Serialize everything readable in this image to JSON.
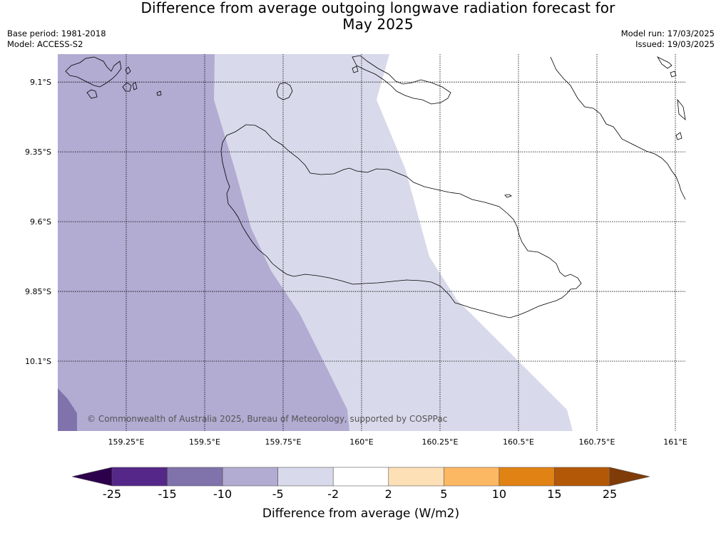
{
  "header": {
    "title_line1": "Difference from average outgoing longwave radiation forecast for",
    "title_line2": "May 2025",
    "base_period": "Base period: 1981-2018",
    "model": "Model: ACCESS-S2",
    "model_run": "Model run: 17/03/2025",
    "issued": "Issued: 19/03/2025"
  },
  "map": {
    "lon_range": [
      159.0,
      161.0
    ],
    "lat_range": [
      -9.0,
      -10.35
    ],
    "lon_ticks": [
      159.25,
      159.5,
      159.75,
      160.0,
      160.25,
      160.5,
      160.75,
      161.0
    ],
    "lon_tick_labels": [
      "159.25°E",
      "159.5°E",
      "159.75°E",
      "160°E",
      "160.25°E",
      "160.5°E",
      "160.75°E",
      "161°E"
    ],
    "lat_ticks": [
      -9.1,
      -9.35,
      -9.6,
      -9.85,
      -10.1
    ],
    "lat_tick_labels": [
      "9.1°S",
      "9.35°S",
      "9.6°S",
      "9.85°S",
      "10.1°S"
    ],
    "gridlines": "dotted",
    "copyright": "© Commonwealth of Australia 2025, Bureau of Meteorology, supported by COSPPac"
  },
  "colorbar": {
    "title": "Difference from average (W/m2)",
    "boundaries": [
      -25,
      -15,
      -10,
      -5,
      -2,
      2,
      5,
      10,
      15,
      25
    ],
    "labels": [
      "-25",
      "-15",
      "-10",
      "-5",
      "-2",
      "2",
      "5",
      "10",
      "15",
      "25"
    ],
    "colors": [
      "#542788",
      "#8073ac",
      "#b2abd2",
      "#d8daeb",
      "#ffffff",
      "#fee0b6",
      "#fdb863",
      "#e08214",
      "#b35806"
    ],
    "extend_low_color": "#2d004b",
    "extend_high_color": "#7f3b08"
  },
  "field_colors": {
    "band_minus15_minus10": "#8073ac",
    "band_minus10_minus5": "#b2abd2",
    "band_minus5_minus2": "#d8daeb",
    "band_minus2_2": "#ffffff"
  }
}
